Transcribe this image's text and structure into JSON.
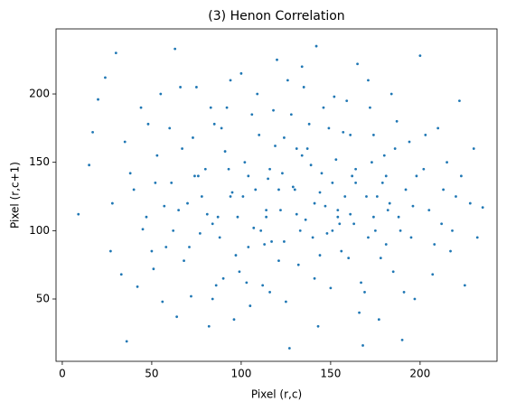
{
  "chart_data": {
    "type": "scatter",
    "title": "(3) Henon Correlation",
    "xlabel": "Pixel (r,c)",
    "ylabel": "Pixel (r,c+1)",
    "color": "#1f77b4",
    "xlim": [
      -3.5,
      243
    ],
    "ylim": [
      4.4,
      247.6
    ],
    "xticks": [
      0,
      50,
      100,
      150,
      200
    ],
    "yticks": [
      50,
      100,
      150,
      200
    ],
    "grid": false,
    "x": [
      9,
      36,
      127,
      168,
      142,
      235,
      30,
      63,
      15,
      17,
      20,
      24,
      27,
      33,
      38,
      42,
      45,
      48,
      51,
      55,
      58,
      61,
      64,
      67,
      70,
      72,
      75,
      77,
      80,
      82,
      85,
      87,
      90,
      92,
      95,
      97,
      100,
      102,
      105,
      107,
      110,
      112,
      115,
      117,
      120,
      122,
      125,
      128,
      130,
      132,
      135,
      137,
      140,
      143,
      145,
      147,
      150,
      152,
      155,
      157,
      160,
      162,
      165,
      167,
      170,
      172,
      175,
      177,
      180,
      182,
      185,
      187,
      190,
      192,
      195,
      197,
      200,
      202,
      205,
      207,
      210,
      212,
      215,
      217,
      220,
      222,
      225,
      228,
      230,
      232,
      52,
      56,
      60,
      66,
      71,
      76,
      81,
      86,
      91,
      96,
      101,
      106,
      111,
      116,
      121,
      126,
      131,
      136,
      141,
      146,
      151,
      156,
      161,
      166,
      171,
      176,
      181,
      186,
      191,
      196,
      99,
      104,
      109,
      114,
      119,
      124,
      129,
      134,
      139,
      144,
      149,
      154,
      159,
      164,
      169,
      174,
      179,
      184,
      189,
      194,
      40,
      44,
      47,
      53,
      57,
      62,
      68,
      73,
      78,
      83,
      88,
      93,
      98,
      103,
      108,
      113,
      118,
      123,
      133,
      138,
      148,
      153,
      158,
      163,
      173,
      178,
      183,
      188,
      198,
      203,
      208,
      213,
      218,
      223,
      35,
      28,
      50,
      65,
      74,
      84,
      89,
      94,
      116,
      121,
      131,
      141,
      151,
      161,
      171,
      181,
      124,
      134,
      144,
      154,
      164,
      174,
      114,
      104,
      94,
      84
    ],
    "y": [
      112,
      19,
      14,
      16,
      235,
      117,
      230,
      233,
      148,
      172,
      196,
      212,
      85,
      68,
      142,
      59,
      101,
      178,
      72,
      200,
      88,
      135,
      37,
      160,
      120,
      52,
      205,
      98,
      145,
      30,
      178,
      110,
      65,
      190,
      128,
      82,
      215,
      150,
      45,
      102,
      170,
      60,
      138,
      92,
      225,
      115,
      48,
      185,
      130,
      75,
      205,
      160,
      95,
      30,
      142,
      118,
      58,
      198,
      105,
      172,
      80,
      140,
      222,
      62,
      125,
      190,
      100,
      35,
      155,
      115,
      70,
      180,
      20,
      130,
      95,
      50,
      228,
      145,
      115,
      68,
      175,
      105,
      150,
      85,
      125,
      195,
      60,
      120,
      160,
      95,
      135,
      48,
      175,
      205,
      88,
      140,
      112,
      60,
      158,
      35,
      125,
      185,
      100,
      145,
      78,
      210,
      160,
      108,
      65,
      190,
      135,
      85,
      170,
      40,
      210,
      125,
      90,
      160,
      55,
      118,
      70,
      140,
      200,
      115,
      162,
      92,
      132,
      220,
      148,
      82,
      175,
      110,
      195,
      145,
      55,
      170,
      135,
      200,
      100,
      165,
      130,
      190,
      110,
      155,
      118,
      100,
      78,
      168,
      125,
      190,
      95,
      145,
      110,
      62,
      130,
      90,
      188,
      142,
      100,
      178,
      98,
      152,
      125,
      105,
      150,
      80,
      120,
      110,
      140,
      170,
      90,
      130,
      100,
      140,
      165,
      120,
      85,
      115,
      140,
      105,
      175,
      125,
      55,
      130,
      112,
      120,
      100,
      112,
      95,
      140,
      168,
      155,
      128,
      115,
      135,
      110,
      110,
      88,
      210,
      50
    ]
  }
}
